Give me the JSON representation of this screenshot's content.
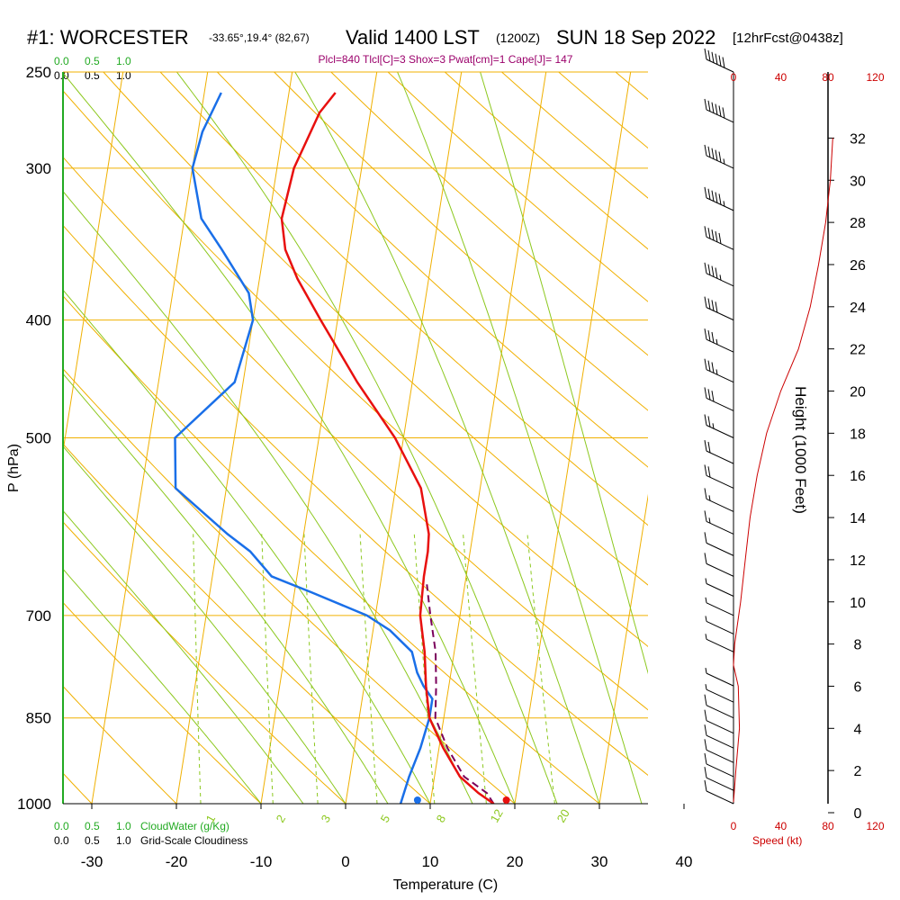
{
  "header": {
    "station": "#1: WORCESTER",
    "coords": "-33.65°,19.4° (82,67)",
    "valid": "Valid 1400 LST",
    "utc": "(1200Z)",
    "date": "SUN 18 Sep 2022",
    "forecast": "[12hrFcst@0438z]"
  },
  "params_line": "Plcl=840 Tlcl[C]=3 Shox=3 Pwat[cm]=1 Cape[J]= 147",
  "scales": {
    "cloud_water_top": [
      "0.0",
      "0.5",
      "1.0"
    ],
    "cloudiness_top": [
      "0.0",
      "0.5",
      "1.0"
    ],
    "cloud_water_bottom": [
      "0.0",
      "0.5",
      "1.0"
    ],
    "cloudiness_bottom": [
      "0.0",
      "0.5",
      "1.0"
    ],
    "cloud_water_label": "CloudWater (g/Kg)",
    "cloudiness_label": "Grid-Scale Cloudiness",
    "speed_ticks": [
      "0",
      "40",
      "80",
      "120"
    ],
    "speed_label": "Speed (kt)"
  },
  "colors": {
    "temperature": "#e8100f",
    "dewpoint": "#1a6fe8",
    "parcel": "#7a005a",
    "isotherm": "#f0b000",
    "dry_adiabat": "#f0b000",
    "moist_adiabat": "#8cc81e",
    "mixing_ratio": "#8cc81e",
    "cloud_axis": "#22aa22",
    "params_text": "#9b006b",
    "speed": "#cc0000"
  },
  "chart_data": {
    "type": "skew-t",
    "xlabel": "Temperature (C)",
    "ylabel": "P (hPa)",
    "y2label": "Height (1000 Feet)",
    "x_ticks": [
      -30,
      -20,
      -10,
      0,
      10,
      20,
      30,
      40
    ],
    "p_ticks": [
      250,
      300,
      400,
      500,
      700,
      850,
      1000
    ],
    "height_ticks": [
      0,
      2,
      4,
      6,
      8,
      10,
      12,
      14,
      16,
      18,
      20,
      22,
      24,
      26,
      28,
      30,
      32
    ],
    "isotherm_labels": [
      "-10",
      "0",
      "10",
      "20",
      "30",
      "10",
      "0",
      "-10",
      "-20",
      "-30"
    ],
    "mixing_ratio_labels": [
      "1",
      "2",
      "3",
      "5",
      "8",
      "12",
      "20"
    ],
    "temperature_profile": [
      {
        "p": 1000,
        "t": 17.5
      },
      {
        "p": 980,
        "t": 15.5
      },
      {
        "p": 950,
        "t": 13.0
      },
      {
        "p": 900,
        "t": 10.5
      },
      {
        "p": 850,
        "t": 8.3
      },
      {
        "p": 800,
        "t": 7.3
      },
      {
        "p": 750,
        "t": 6.5
      },
      {
        "p": 700,
        "t": 5.3
      },
      {
        "p": 650,
        "t": 5.0
      },
      {
        "p": 620,
        "t": 5.0
      },
      {
        "p": 600,
        "t": 4.8
      },
      {
        "p": 550,
        "t": 3.0
      },
      {
        "p": 500,
        "t": -1.0
      },
      {
        "p": 450,
        "t": -6.5
      },
      {
        "p": 400,
        "t": -12.0
      },
      {
        "p": 370,
        "t": -15.5
      },
      {
        "p": 350,
        "t": -17.5
      },
      {
        "p": 330,
        "t": -18.5
      },
      {
        "p": 300,
        "t": -18.0
      },
      {
        "p": 270,
        "t": -16.0
      },
      {
        "p": 260,
        "t": -14.5
      }
    ],
    "dewpoint_profile": [
      {
        "p": 1000,
        "t": 6.5
      },
      {
        "p": 950,
        "t": 7.0
      },
      {
        "p": 900,
        "t": 7.8
      },
      {
        "p": 850,
        "t": 8.3
      },
      {
        "p": 820,
        "t": 8.3
      },
      {
        "p": 800,
        "t": 7.0
      },
      {
        "p": 780,
        "t": 6.0
      },
      {
        "p": 750,
        "t": 5.0
      },
      {
        "p": 720,
        "t": 2.0
      },
      {
        "p": 700,
        "t": -1.0
      },
      {
        "p": 670,
        "t": -8.0
      },
      {
        "p": 650,
        "t": -13.0
      },
      {
        "p": 620,
        "t": -16.0
      },
      {
        "p": 600,
        "t": -19.0
      },
      {
        "p": 550,
        "t": -26.0
      },
      {
        "p": 500,
        "t": -27.0
      },
      {
        "p": 450,
        "t": -21.0
      },
      {
        "p": 400,
        "t": -20.0
      },
      {
        "p": 380,
        "t": -21.0
      },
      {
        "p": 350,
        "t": -25.0
      },
      {
        "p": 330,
        "t": -28.0
      },
      {
        "p": 300,
        "t": -30.0
      },
      {
        "p": 280,
        "t": -29.5
      },
      {
        "p": 260,
        "t": -28.0
      }
    ],
    "parcel_profile": [
      {
        "p": 1000,
        "t": 17.5
      },
      {
        "p": 980,
        "t": 16.5
      },
      {
        "p": 950,
        "t": 13.5
      },
      {
        "p": 900,
        "t": 11.0
      },
      {
        "p": 850,
        "t": 9.0
      },
      {
        "p": 800,
        "t": 8.5
      },
      {
        "p": 750,
        "t": 7.8
      },
      {
        "p": 700,
        "t": 6.5
      },
      {
        "p": 660,
        "t": 5.5
      }
    ],
    "surface_temp": 19.0,
    "surface_dewpoint": 8.5,
    "wind_speed_profile_kt": [
      {
        "h": 0.5,
        "s": 0
      },
      {
        "h": 2,
        "s": 2
      },
      {
        "h": 4,
        "s": 5
      },
      {
        "h": 6,
        "s": 4
      },
      {
        "h": 7,
        "s": 0
      },
      {
        "h": 8,
        "s": 1
      },
      {
        "h": 10,
        "s": 6
      },
      {
        "h": 12,
        "s": 10
      },
      {
        "h": 14,
        "s": 14
      },
      {
        "h": 16,
        "s": 20
      },
      {
        "h": 18,
        "s": 28
      },
      {
        "h": 20,
        "s": 40
      },
      {
        "h": 22,
        "s": 55
      },
      {
        "h": 24,
        "s": 65
      },
      {
        "h": 26,
        "s": 72
      },
      {
        "h": 28,
        "s": 78
      },
      {
        "h": 30,
        "s": 82
      },
      {
        "h": 32,
        "s": 84
      }
    ],
    "wind_barbs": [
      {
        "p": 250,
        "kt": 60
      },
      {
        "p": 275,
        "kt": 60
      },
      {
        "p": 300,
        "kt": 55
      },
      {
        "p": 325,
        "kt": 55
      },
      {
        "p": 350,
        "kt": 50
      },
      {
        "p": 375,
        "kt": 45
      },
      {
        "p": 400,
        "kt": 40
      },
      {
        "p": 425,
        "kt": 35
      },
      {
        "p": 450,
        "kt": 35
      },
      {
        "p": 475,
        "kt": 30
      },
      {
        "p": 500,
        "kt": 25
      },
      {
        "p": 525,
        "kt": 20
      },
      {
        "p": 550,
        "kt": 20
      },
      {
        "p": 575,
        "kt": 15
      },
      {
        "p": 600,
        "kt": 15
      },
      {
        "p": 625,
        "kt": 10
      },
      {
        "p": 650,
        "kt": 10
      },
      {
        "p": 675,
        "kt": 5
      },
      {
        "p": 700,
        "kt": 5
      },
      {
        "p": 725,
        "kt": 5
      },
      {
        "p": 750,
        "kt": 5
      },
      {
        "p": 800,
        "kt": 5
      },
      {
        "p": 825,
        "kt": 5
      },
      {
        "p": 850,
        "kt": 10
      },
      {
        "p": 875,
        "kt": 10
      },
      {
        "p": 900,
        "kt": 10
      },
      {
        "p": 925,
        "kt": 10
      },
      {
        "p": 950,
        "kt": 10
      },
      {
        "p": 975,
        "kt": 10
      },
      {
        "p": 1000,
        "kt": 10
      }
    ]
  }
}
